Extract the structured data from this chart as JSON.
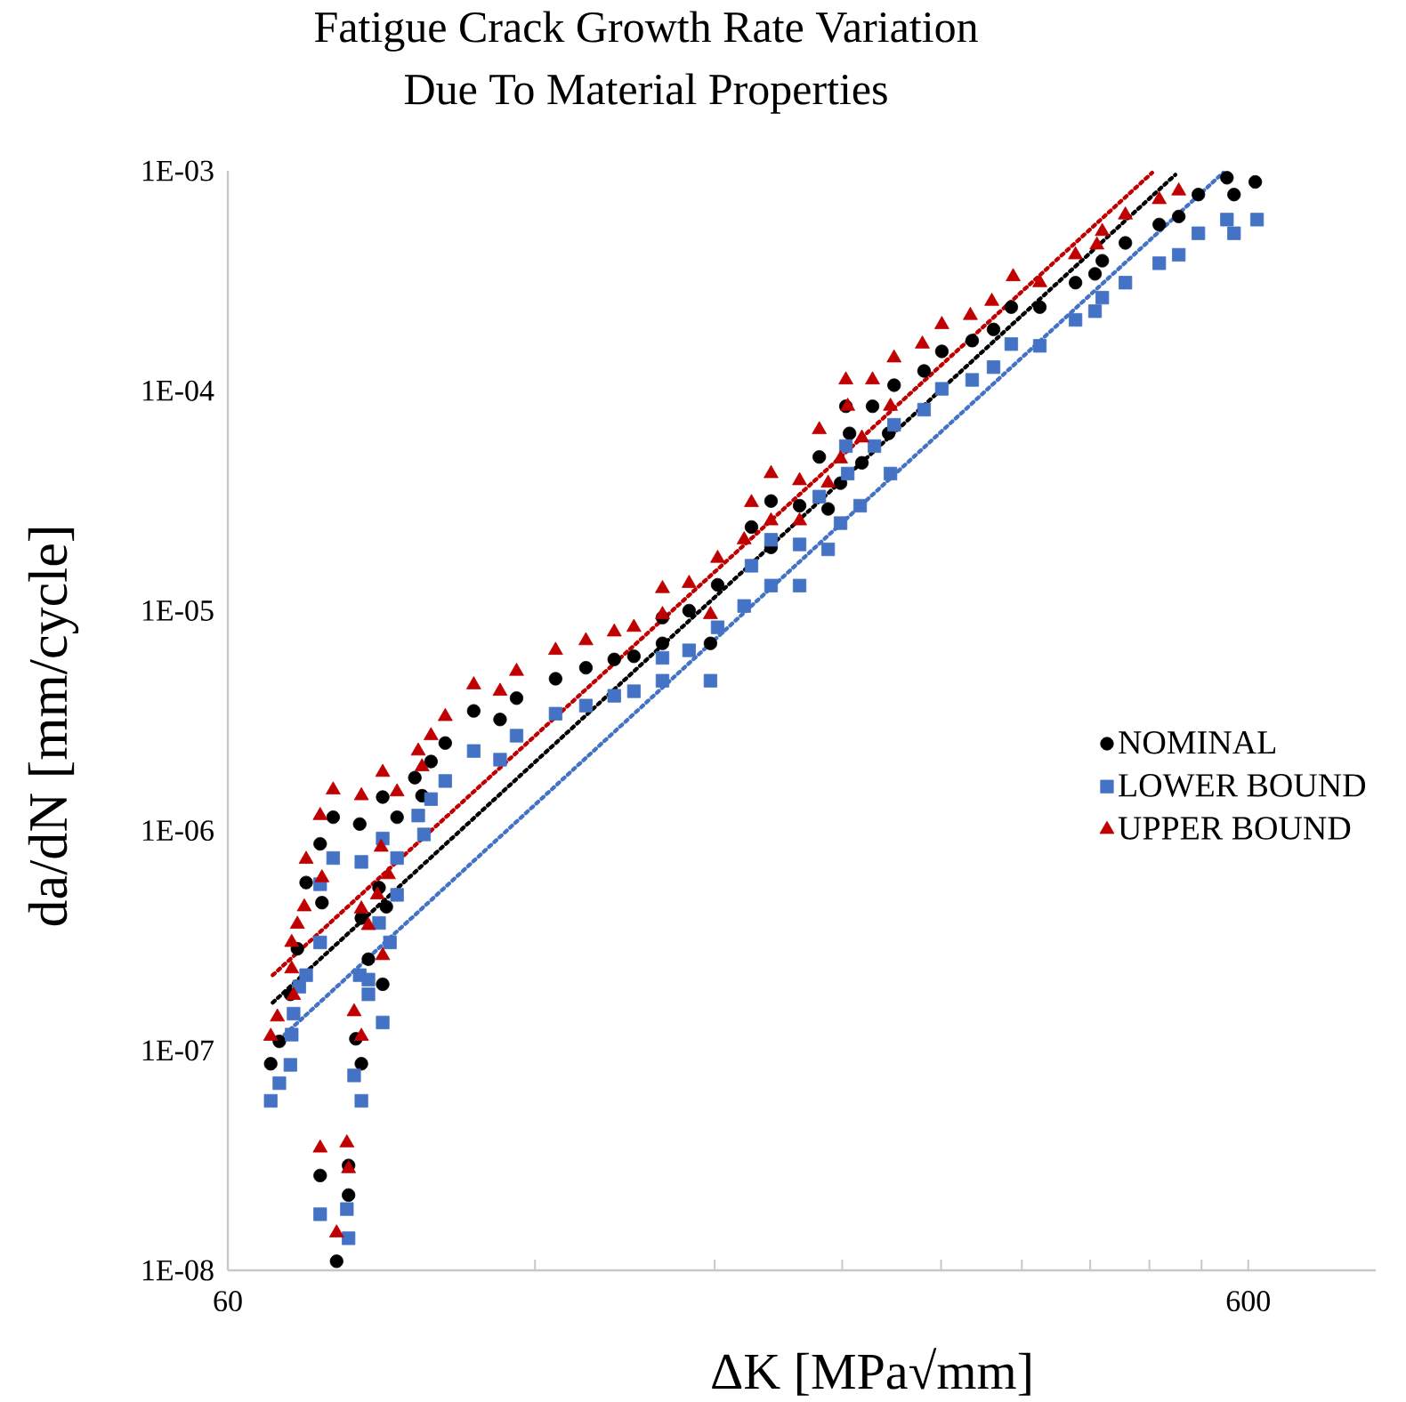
{
  "chart_data": {
    "type": "scatter",
    "title": "Fatigue Crack Growth Rate Variation\nDue To Material Properties",
    "xlabel": "ΔK [MPa√mm]",
    "ylabel": "da/dN [mm/cycle]",
    "log": "xy",
    "xlim": [
      60,
      800
    ],
    "ylim": [
      1e-08,
      0.001
    ],
    "xticks": [
      60,
      {
        "value": 120,
        "label": null
      },
      {
        "value": 180,
        "label": null
      },
      {
        "value": 240,
        "label": null
      },
      {
        "value": 300,
        "label": null
      },
      {
        "value": 360,
        "label": null
      },
      {
        "value": 420,
        "label": null
      },
      {
        "value": 480,
        "label": null
      },
      {
        "value": 540,
        "label": null
      },
      600
    ],
    "yticks": [
      {
        "value": 1e-08,
        "label": "1E-08"
      },
      {
        "value": 1e-07,
        "label": "1E-07"
      },
      {
        "value": 1e-06,
        "label": "1E-06"
      },
      {
        "value": 1e-05,
        "label": "1E-05"
      },
      {
        "value": 0.0001,
        "label": "1E-04"
      },
      {
        "value": 0.001,
        "label": "1E-03"
      }
    ],
    "legend": "right",
    "series": [
      {
        "name": "NOMINAL",
        "color": "#000000",
        "marker": "circle",
        "x": [
          66.1,
          67.4,
          69.1,
          70.2,
          71.6,
          73.9,
          74.2,
          76.1,
          80.8,
          81.1,
          80.1,
          81.1,
          82.4,
          85.1,
          84.4,
          85.8,
          85.1,
          87.9,
          91.5,
          93.0,
          94.9,
          98.0,
          104.5,
          110.9,
          115.1,
          125.7,
          134.6,
          143.5,
          150.0,
          160.0,
          160.0,
          169.9,
          178.3,
          181.2,
          195.6,
          204.4,
          204.4,
          218.0,
          232.5,
          227.9,
          239.1,
          242.0,
          244.0,
          250.9,
          257.0,
          266.5,
          269.8,
          288.7,
          300.5,
          321.8,
          337.7,
          351.5,
          374.9,
          406.3,
          424.6,
          431.6,
          454.7,
          490.8,
          512.9,
          536.1,
          571.8,
          581.0,
          609.6,
          73.9,
          78.8,
          78.8,
          76.7
        ],
        "values": [
          8.7e-08,
          1.1e-07,
          1.8e-07,
          2.9e-07,
          5.8e-07,
          8.7e-07,
          4.7e-07,
          1.15e-06,
          1.07e-06,
          4e-07,
          1.13e-07,
          8.7e-08,
          2.6e-07,
          2e-07,
          5.5e-07,
          4.5e-07,
          1.42e-06,
          1.15e-06,
          1.74e-06,
          1.44e-06,
          2.06e-06,
          2.5e-06,
          3.5e-06,
          3.2e-06,
          4e-06,
          4.9e-06,
          5.5e-06,
          6e-06,
          6.2e-06,
          9.3e-06,
          7.1e-06,
          1e-05,
          7.1e-06,
          1.31e-05,
          2.4e-05,
          3.15e-05,
          1.94e-05,
          3e-05,
          2.9e-05,
          5e-05,
          3.8e-05,
          8.5e-05,
          6.4e-05,
          4.7e-05,
          8.5e-05,
          6.4e-05,
          0.000106,
          0.000123,
          0.000151,
          0.000169,
          0.00019,
          0.00024,
          0.00024,
          0.00031,
          0.00034,
          0.00039,
          0.00047,
          0.00057,
          0.00062,
          0.00078,
          0.00093,
          0.00078,
          0.00089,
          2.7e-08,
          3e-08,
          2.2e-08,
          1.1e-08
        ]
      },
      {
        "name": "LOWER BOUND",
        "color": "#4472c4",
        "marker": "square",
        "x": [
          66.1,
          67.4,
          69.1,
          69.3,
          69.6,
          70.5,
          71.6,
          73.9,
          73.9,
          76.1,
          81.1,
          80.8,
          82.4,
          82.4,
          79.8,
          81.1,
          85.1,
          84.4,
          86.5,
          87.9,
          85.1,
          87.9,
          92.2,
          93.4,
          94.9,
          98.0,
          104.5,
          110.9,
          115.1,
          125.7,
          134.6,
          143.5,
          150.0,
          160.0,
          169.9,
          160.0,
          178.3,
          181.2,
          192.4,
          195.6,
          204.4,
          218.0,
          204.4,
          218.0,
          232.5,
          239.1,
          249.9,
          227.9,
          243.0,
          242.0,
          258.1,
          267.6,
          269.8,
          288.7,
          300.5,
          321.8,
          337.7,
          351.5,
          374.9,
          406.3,
          424.6,
          431.6,
          454.7,
          490.8,
          512.9,
          536.1,
          571.8,
          581.0,
          612.0,
          73.9,
          78.5,
          78.8
        ],
        "values": [
          5.9e-08,
          7.1e-08,
          8.6e-08,
          1.18e-07,
          1.47e-07,
          1.95e-07,
          2.2e-07,
          3.1e-07,
          5.7e-07,
          7.5e-07,
          7.2e-07,
          2.2e-07,
          2.1e-07,
          1.8e-07,
          7.7e-08,
          5.9e-08,
          1.34e-07,
          3.8e-07,
          3.1e-07,
          5.1e-07,
          9.2e-07,
          7.5e-07,
          1.17e-06,
          9.6e-07,
          1.39e-06,
          1.68e-06,
          2.3e-06,
          2.1e-06,
          2.7e-06,
          3.4e-06,
          3.7e-06,
          4.1e-06,
          4.3e-06,
          6.1e-06,
          6.6e-06,
          4.8e-06,
          4.8e-06,
          8.4e-06,
          1.05e-05,
          1.6e-05,
          1.3e-05,
          1.3e-05,
          2.1e-05,
          2e-05,
          1.9e-05,
          2.5e-05,
          3e-05,
          3.3e-05,
          4.2e-05,
          5.6e-05,
          5.6e-05,
          4.2e-05,
          7e-05,
          8.2e-05,
          0.000102,
          0.000112,
          0.000128,
          0.000163,
          0.00016,
          0.00021,
          0.00023,
          0.000265,
          0.00031,
          0.00038,
          0.000415,
          0.00052,
          0.0006,
          0.00052,
          0.0006,
          1.8e-08,
          1.9e-08,
          1.4e-08
        ]
      },
      {
        "name": "UPPER BOUND",
        "color": "#c00000",
        "marker": "triangle",
        "x": [
          66.1,
          67.1,
          69.6,
          69.3,
          69.3,
          70.2,
          71.3,
          71.6,
          74.2,
          73.9,
          76.1,
          81.1,
          85.1,
          87.9,
          84.8,
          86.2,
          84.1,
          81.1,
          82.4,
          85.1,
          79.8,
          81.1,
          73.9,
          78.5,
          78.8,
          76.7,
          92.2,
          93.0,
          94.9,
          98.0,
          104.5,
          110.9,
          115.1,
          125.7,
          134.6,
          143.5,
          150.0,
          160.0,
          169.9,
          160.0,
          178.3,
          181.2,
          192.4,
          195.6,
          204.4,
          204.4,
          218.0,
          218.0,
          232.5,
          227.9,
          239.1,
          242.0,
          257.0,
          250.9,
          243.0,
          269.8,
          267.6,
          287.6,
          300.5,
          320.5,
          336.4,
          353.0,
          374.9,
          406.3,
          431.6,
          426.4,
          454.7,
          490.8,
          512.9
        ],
        "values": [
          1.16e-07,
          1.42e-07,
          1.78e-07,
          2.35e-07,
          3.1e-07,
          3.75e-07,
          4.5e-07,
          7.4e-07,
          6.1e-07,
          1.17e-06,
          1.53e-06,
          1.44e-06,
          1.84e-06,
          1.5e-06,
          8.4e-07,
          6.3e-07,
          5.1e-07,
          4.4e-07,
          3.7e-07,
          2.7e-07,
          1.5e-07,
          1.16e-07,
          3.6e-08,
          3.8e-08,
          2.9e-08,
          1.48e-08,
          2.3e-06,
          1.95e-06,
          2.7e-06,
          3.3e-06,
          4.6e-06,
          4.3e-06,
          5.3e-06,
          6.6e-06,
          7.3e-06,
          8e-06,
          8.4e-06,
          1.26e-05,
          1.33e-05,
          9.6e-06,
          9.6e-06,
          1.73e-05,
          2.1e-05,
          3.1e-05,
          4.2e-05,
          2.56e-05,
          3.9e-05,
          2.56e-05,
          3.8e-05,
          6.65e-05,
          4.9e-05,
          0.000112,
          0.000112,
          6.1e-05,
          8.5e-05,
          0.000141,
          8.5e-05,
          0.000163,
          0.0002,
          0.00022,
          0.000255,
          0.00033,
          0.00031,
          0.000415,
          0.00053,
          0.00046,
          0.00063,
          0.00074,
          0.00081
        ]
      },
      {
        "type": "line",
        "line_style": "dotted",
        "color": "#000000",
        "x": [
          66.4,
          509
        ],
        "values": [
          1.65e-07,
          0.00096
        ]
      },
      {
        "type": "line",
        "line_style": "dotted",
        "color": "#4472c4",
        "x": [
          68.2,
          567
        ],
        "values": [
          1.18e-07,
          0.00098
        ]
      },
      {
        "type": "line",
        "line_style": "dotted",
        "color": "#c00000",
        "x": [
          66.4,
          483
        ],
        "values": [
          2.2e-07,
          0.00098
        ]
      }
    ]
  }
}
